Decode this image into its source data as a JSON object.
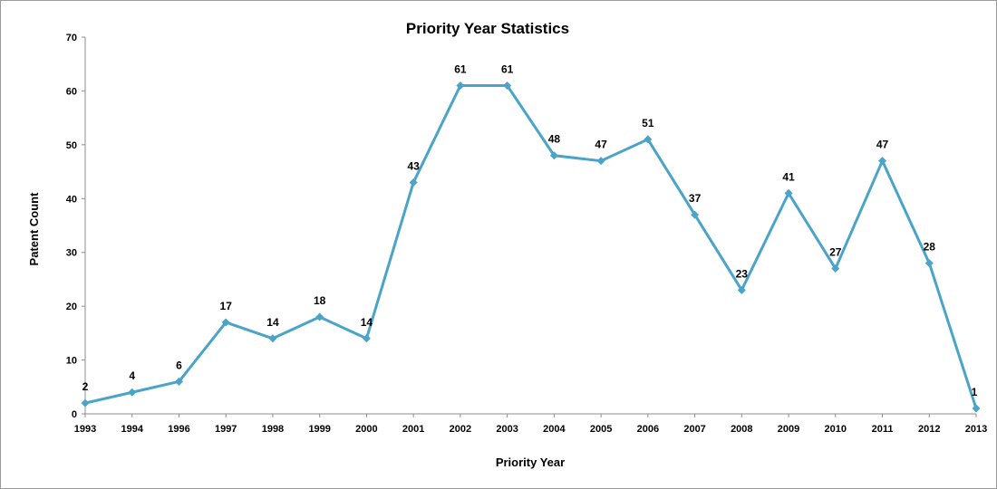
{
  "chart_data": {
    "type": "line",
    "title": "Priority Year Statistics",
    "xlabel": "Priority Year",
    "ylabel": "Patent Count",
    "categories": [
      "1993",
      "1994",
      "1996",
      "1997",
      "1998",
      "1999",
      "2000",
      "2001",
      "2002",
      "2003",
      "2004",
      "2005",
      "2006",
      "2007",
      "2008",
      "2009",
      "2010",
      "2011",
      "2012",
      "2013"
    ],
    "series": [
      {
        "name": "Patent Count",
        "values": [
          2,
          4,
          6,
          17,
          14,
          18,
          14,
          43,
          61,
          61,
          48,
          47,
          51,
          37,
          23,
          41,
          27,
          47,
          28,
          1
        ]
      }
    ],
    "data_labels": [
      "2",
      "4",
      "6",
      "17",
      "14",
      "18",
      "14",
      "43",
      "61",
      "61",
      "48",
      "47",
      "51",
      "37",
      "23",
      "41",
      "27",
      "47",
      "28",
      "1"
    ],
    "ylim": [
      0,
      70
    ],
    "yticks": [
      0,
      10,
      20,
      30,
      40,
      50,
      60,
      70
    ],
    "ytick_labels": [
      "0",
      "10",
      "20",
      "30",
      "40",
      "50",
      "60",
      "70"
    ],
    "grid": false,
    "legend": "none",
    "line_color": "#4aa3c8"
  }
}
